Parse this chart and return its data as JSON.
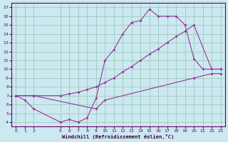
{
  "xlabel": "Windchill (Refroidissement éolien,°C)",
  "background_color": "#cce8f0",
  "grid_color": "#99ccbb",
  "line_color": "#993399",
  "xlim": [
    -0.5,
    23.5
  ],
  "ylim": [
    3.5,
    17.5
  ],
  "xticks": [
    0,
    1,
    2,
    5,
    6,
    7,
    8,
    9,
    10,
    11,
    12,
    13,
    14,
    15,
    16,
    17,
    18,
    19,
    20,
    21,
    22,
    23
  ],
  "yticks": [
    4,
    5,
    6,
    7,
    8,
    9,
    10,
    11,
    12,
    13,
    14,
    15,
    16,
    17
  ],
  "line1_x": [
    0,
    1,
    2,
    5,
    6,
    7,
    8,
    9,
    10,
    11,
    12,
    13,
    14,
    15,
    16,
    17,
    18,
    19,
    20,
    21,
    22,
    23
  ],
  "line1_y": [
    7.0,
    6.5,
    5.5,
    4.0,
    4.3,
    4.0,
    4.5,
    6.7,
    11.0,
    12.2,
    14.0,
    15.3,
    15.5,
    16.8,
    16.0,
    16.0,
    16.0,
    15.0,
    11.2,
    10.0,
    10.0,
    10.0
  ],
  "line2_x": [
    0,
    2,
    5,
    6,
    7,
    8,
    9,
    10,
    11,
    12,
    13,
    14,
    15,
    16,
    17,
    18,
    19,
    20,
    22,
    23
  ],
  "line2_y": [
    7.0,
    7.0,
    7.0,
    7.2,
    7.4,
    7.7,
    8.0,
    8.5,
    9.0,
    9.7,
    10.3,
    11.0,
    11.7,
    12.3,
    13.0,
    13.7,
    14.3,
    15.0,
    10.0,
    10.0
  ],
  "line3_x": [
    0,
    2,
    9,
    10,
    20,
    22,
    23
  ],
  "line3_y": [
    7.0,
    7.0,
    5.5,
    6.5,
    9.0,
    9.5,
    9.5
  ]
}
